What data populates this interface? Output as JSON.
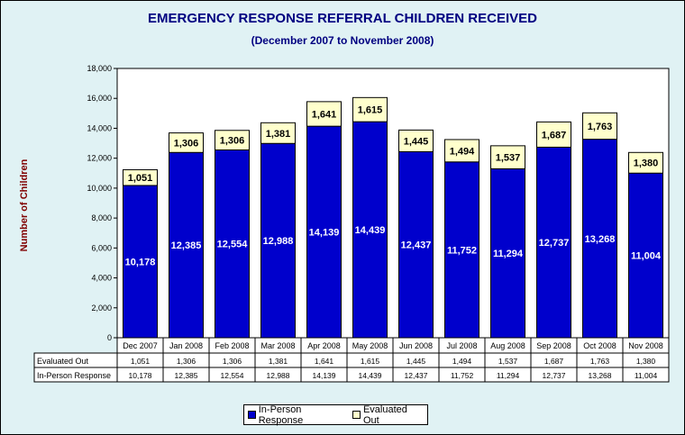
{
  "chart_data": {
    "type": "bar",
    "stacked": true,
    "title": "EMERGENCY RESPONSE REFERRAL CHILDREN RECEIVED",
    "subtitle": "(December 2007 to November 2008)",
    "ylabel": "Number of Children",
    "xlabel": "",
    "ylim": [
      0,
      18000
    ],
    "yticks": [
      "0",
      "2,000",
      "4,000",
      "6,000",
      "8,000",
      "10,000",
      "12,000",
      "14,000",
      "16,000",
      "18,000"
    ],
    "grid": false,
    "legend_position": "bottom",
    "categories": [
      "Dec 2007",
      "Jan 2008",
      "Feb 2008",
      "Mar 2008",
      "Apr 2008",
      "May 2008",
      "Jun 2008",
      "Jul 2008",
      "Aug 2008",
      "Sep 2008",
      "Oct 2008",
      "Nov 2008"
    ],
    "series": [
      {
        "name": "In-Person Response",
        "color": "#0000cc",
        "values": [
          10178,
          12385,
          12554,
          12988,
          14139,
          14439,
          12437,
          11752,
          11294,
          12737,
          13268,
          11004
        ],
        "labels": [
          "10,178",
          "12,385",
          "12,554",
          "12,988",
          "14,139",
          "14,439",
          "12,437",
          "11,752",
          "11,294",
          "12,737",
          "13,268",
          "11,004"
        ]
      },
      {
        "name": "Evaluated Out",
        "color": "#ffffcc",
        "values": [
          1051,
          1306,
          1306,
          1381,
          1641,
          1615,
          1445,
          1494,
          1537,
          1687,
          1763,
          1380
        ],
        "labels": [
          "1,051",
          "1,306",
          "1,306",
          "1,381",
          "1,641",
          "1,615",
          "1,445",
          "1,494",
          "1,537",
          "1,687",
          "1,763",
          "1,380"
        ]
      }
    ],
    "table_rows": [
      "Evaluated Out",
      "In-Person Response"
    ]
  }
}
